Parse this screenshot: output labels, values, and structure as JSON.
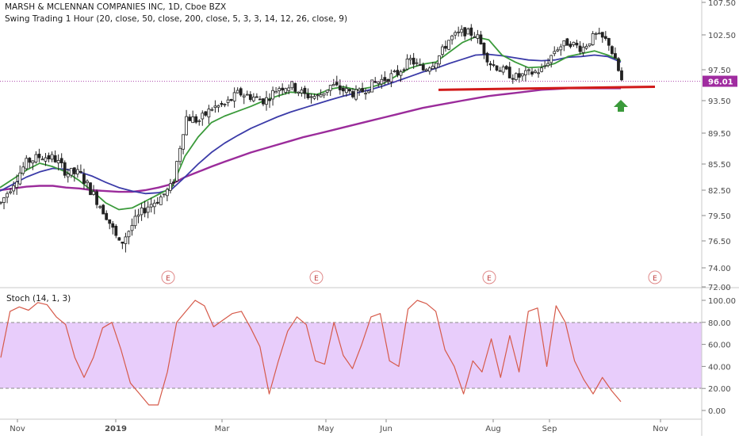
{
  "chart_data": [
    {
      "type": "candlestick",
      "title": "MARSH & MCLENNAN COMPANIES INC, 1D, Cboe BZX",
      "indicator_label": "Swing Trading 1 Hour (20, close, 50, close, 200, close, 5, 3, 3, 14, 12, 26, close, 9)",
      "y_ticks": [
        "107.50",
        "102.50",
        "97.50",
        "93.50",
        "89.50",
        "85.50",
        "82.50",
        "79.50",
        "76.50",
        "74.00",
        "72.00"
      ],
      "ylim": [
        72,
        107.5
      ],
      "last_price": "96.01",
      "x_ticks": [
        "Nov",
        "2019",
        "Mar",
        "May",
        "Jun",
        "Aug",
        "Sep",
        "Nov"
      ],
      "earnings_markers": [
        "E",
        "E",
        "E",
        "E"
      ],
      "ma_green_close": [
        82.8,
        83.8,
        84.8,
        85.6,
        85.2,
        84.6,
        83.6,
        82.4,
        81.0,
        80.2,
        80.4,
        81.2,
        82.0,
        82.8,
        86.5,
        89.0,
        90.8,
        91.6,
        92.2,
        92.8,
        93.5,
        94.1,
        94.6,
        94.5,
        94.3,
        95.0,
        95.3,
        94.9,
        95.2,
        95.7,
        96.7,
        97.7,
        98.3,
        98.6,
        100.0,
        101.4,
        102.2,
        101.8,
        99.6,
        98.6,
        97.8,
        97.9,
        98.4,
        99.4,
        99.8,
        100.2,
        99.6,
        98.8
      ],
      "ma_blue_close": [
        82.4,
        83.2,
        84.0,
        84.6,
        85.0,
        84.9,
        84.6,
        84.1,
        83.4,
        82.8,
        82.4,
        82.1,
        82.2,
        82.6,
        84.0,
        85.5,
        87.0,
        88.2,
        89.2,
        90.1,
        90.8,
        91.5,
        92.1,
        92.6,
        93.1,
        93.6,
        94.1,
        94.5,
        94.9,
        95.4,
        96.0,
        96.6,
        97.2,
        97.7,
        98.4,
        99.0,
        99.6,
        99.7,
        99.5,
        99.2,
        98.9,
        98.8,
        98.9,
        99.3,
        99.4,
        99.6,
        99.4,
        98.6
      ],
      "ma_purple_close": [
        82.5,
        82.7,
        82.9,
        83.0,
        83.0,
        82.8,
        82.7,
        82.5,
        82.4,
        82.3,
        82.3,
        82.5,
        82.8,
        83.2,
        84.0,
        84.6,
        85.2,
        85.8,
        86.4,
        87.0,
        87.5,
        88.0,
        88.5,
        89.0,
        89.4,
        89.8,
        90.2,
        90.6,
        91.0,
        91.4,
        91.8,
        92.2,
        92.6,
        92.9,
        93.2,
        93.5,
        93.8,
        94.1,
        94.3,
        94.5,
        94.7,
        94.9,
        95.0,
        95.1,
        95.1,
        95.1,
        95.1,
        95.1
      ],
      "close_path": [
        81.0,
        83.5,
        85.8,
        86.5,
        86.3,
        84.5,
        84.4,
        82.0,
        79.5,
        76.0,
        78.5,
        80.5,
        81.5,
        83.0,
        91.5,
        91.0,
        92.6,
        93.0,
        94.5,
        94.0,
        93.5,
        95.2,
        95.5,
        94.2,
        94.0,
        95.5,
        94.8,
        94.3,
        95.5,
        96.3,
        97.0,
        98.9,
        97.5,
        98.9,
        102.0,
        103.0,
        102.5,
        98.5,
        97.4,
        96.5,
        97.0,
        97.5,
        100.5,
        101.5,
        100.5,
        102.5,
        101.5,
        96.0
      ],
      "support_level": 95.1,
      "signal": "up arrow"
    },
    {
      "type": "line",
      "title": "Stoch (14, 1, 3)",
      "y_ticks": [
        "100.00",
        "80.00",
        "60.00",
        "40.00",
        "20.00",
        "0.00"
      ],
      "ylim": [
        0,
        100
      ],
      "band": [
        20,
        80
      ],
      "values": [
        48,
        90,
        94,
        91,
        98,
        96,
        85,
        78,
        48,
        30,
        48,
        75,
        80,
        55,
        25,
        15,
        5,
        5,
        35,
        80,
        90,
        100,
        95,
        76,
        82,
        88,
        90,
        75,
        58,
        15,
        45,
        72,
        85,
        78,
        45,
        42,
        80,
        50,
        38,
        60,
        85,
        88,
        45,
        40,
        92,
        100,
        97,
        90,
        55,
        40,
        15,
        45,
        35,
        65,
        30,
        68,
        35,
        90,
        93,
        40,
        95,
        80,
        45,
        28,
        15,
        30,
        18,
        8
      ]
    }
  ]
}
